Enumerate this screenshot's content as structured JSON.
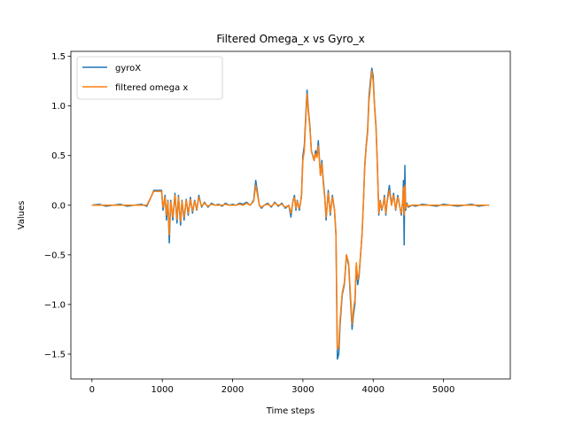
{
  "chart_data": {
    "type": "line",
    "title": "Filtered Omega_x vs Gyro_x",
    "xlabel": "Time steps",
    "ylabel": "Values",
    "xlim": [
      -300,
      5950
    ],
    "ylim": [
      -1.75,
      1.55
    ],
    "xticks": [
      0,
      1000,
      2000,
      3000,
      4000,
      5000
    ],
    "yticks": [
      -1.5,
      -1.0,
      -0.5,
      0.0,
      0.5,
      1.0,
      1.5
    ],
    "xtick_labels": [
      "0",
      "1000",
      "2000",
      "3000",
      "4000",
      "5000"
    ],
    "ytick_labels": [
      "−1.5",
      "−1.0",
      "−0.5",
      "0.0",
      "0.5",
      "1.0",
      "1.5"
    ],
    "grid": false,
    "legend_position": "top-left",
    "series": [
      {
        "name": "gyroX",
        "color": "#1f77b4",
        "x": [
          0,
          100,
          200,
          300,
          400,
          500,
          600,
          700,
          780,
          850,
          880,
          900,
          930,
          960,
          990,
          1010,
          1040,
          1060,
          1080,
          1100,
          1120,
          1150,
          1180,
          1210,
          1230,
          1260,
          1280,
          1310,
          1340,
          1370,
          1400,
          1430,
          1460,
          1490,
          1520,
          1560,
          1600,
          1650,
          1700,
          1750,
          1800,
          1850,
          1900,
          1950,
          2000,
          2050,
          2100,
          2150,
          2200,
          2250,
          2300,
          2330,
          2360,
          2380,
          2410,
          2450,
          2500,
          2550,
          2600,
          2650,
          2700,
          2750,
          2800,
          2830,
          2860,
          2880,
          2900,
          2920,
          2950,
          2980,
          3000,
          3020,
          3040,
          3060,
          3080,
          3100,
          3120,
          3140,
          3160,
          3180,
          3200,
          3220,
          3250,
          3270,
          3290,
          3310,
          3330,
          3360,
          3390,
          3420,
          3450,
          3470,
          3490,
          3510,
          3530,
          3560,
          3590,
          3620,
          3650,
          3680,
          3700,
          3720,
          3740,
          3760,
          3780,
          3800,
          3820,
          3840,
          3860,
          3880,
          3900,
          3920,
          3940,
          3960,
          3980,
          4000,
          4020,
          4040,
          4060,
          4080,
          4100,
          4120,
          4140,
          4160,
          4180,
          4200,
          4230,
          4260,
          4290,
          4320,
          4350,
          4380,
          4400,
          4420,
          4430,
          4440,
          4450,
          4460,
          4480,
          4500,
          4550,
          4600,
          4700,
          4800,
          4900,
          5000,
          5100,
          5200,
          5300,
          5400,
          5500,
          5600,
          5650
        ],
        "y": [
          0.0,
          0.01,
          -0.01,
          0.0,
          0.01,
          -0.01,
          0.0,
          0.01,
          -0.01,
          0.1,
          0.15,
          0.15,
          0.15,
          0.15,
          0.15,
          -0.05,
          0.1,
          -0.15,
          0.05,
          -0.38,
          0.05,
          -0.15,
          0.12,
          -0.18,
          0.1,
          -0.2,
          0.05,
          -0.15,
          0.06,
          -0.1,
          0.08,
          -0.08,
          0.05,
          -0.05,
          0.1,
          -0.02,
          0.03,
          -0.02,
          0.02,
          0.0,
          0.01,
          -0.01,
          0.02,
          0.0,
          0.01,
          0.0,
          0.02,
          0.01,
          0.03,
          0.0,
          0.05,
          0.25,
          0.1,
          0.0,
          -0.03,
          0.0,
          0.02,
          -0.02,
          0.03,
          -0.01,
          0.02,
          -0.03,
          0.0,
          -0.12,
          0.05,
          0.1,
          -0.05,
          0.05,
          -0.05,
          0.1,
          0.5,
          0.6,
          0.9,
          1.16,
          0.95,
          0.8,
          0.55,
          0.5,
          0.45,
          0.55,
          0.5,
          0.65,
          0.3,
          0.45,
          0.25,
          0.1,
          -0.15,
          0.15,
          -0.1,
          0.1,
          -0.05,
          -0.3,
          -1.55,
          -1.5,
          -1.2,
          -0.9,
          -0.8,
          -0.5,
          -0.6,
          -1.0,
          -1.25,
          -1.1,
          -1.0,
          -0.6,
          -0.8,
          -0.7,
          -0.5,
          -0.3,
          0.0,
          0.4,
          0.6,
          0.75,
          1.1,
          1.25,
          1.38,
          1.3,
          1.0,
          0.8,
          0.4,
          -0.1,
          0.05,
          -0.05,
          0.0,
          0.1,
          -0.1,
          0.05,
          0.2,
          0.0,
          0.12,
          -0.05,
          0.1,
          -0.02,
          -0.1,
          0.05,
          0.25,
          -0.4,
          0.4,
          -0.05,
          0.02,
          -0.02,
          0.0,
          -0.01,
          0.01,
          0.0,
          -0.01,
          0.01,
          0.0,
          -0.01,
          0.0,
          0.01,
          -0.01,
          0.0,
          0.0
        ]
      },
      {
        "name": "filtered omega x",
        "color": "#ff7f0e",
        "x": [
          0,
          100,
          200,
          300,
          400,
          500,
          600,
          700,
          780,
          850,
          880,
          900,
          930,
          960,
          990,
          1010,
          1040,
          1060,
          1080,
          1100,
          1120,
          1150,
          1180,
          1210,
          1230,
          1260,
          1280,
          1310,
          1340,
          1370,
          1400,
          1430,
          1460,
          1490,
          1520,
          1560,
          1600,
          1650,
          1700,
          1750,
          1800,
          1850,
          1900,
          1950,
          2000,
          2050,
          2100,
          2150,
          2200,
          2250,
          2300,
          2330,
          2360,
          2380,
          2410,
          2450,
          2500,
          2550,
          2600,
          2650,
          2700,
          2750,
          2800,
          2830,
          2860,
          2880,
          2900,
          2920,
          2950,
          2980,
          3000,
          3020,
          3040,
          3060,
          3080,
          3100,
          3120,
          3140,
          3160,
          3180,
          3200,
          3220,
          3250,
          3270,
          3290,
          3310,
          3330,
          3360,
          3390,
          3420,
          3450,
          3470,
          3490,
          3510,
          3530,
          3560,
          3590,
          3620,
          3650,
          3680,
          3700,
          3720,
          3740,
          3760,
          3780,
          3800,
          3820,
          3840,
          3860,
          3880,
          3900,
          3920,
          3940,
          3960,
          3980,
          4000,
          4020,
          4040,
          4060,
          4080,
          4100,
          4120,
          4140,
          4160,
          4180,
          4200,
          4230,
          4260,
          4290,
          4320,
          4350,
          4380,
          4400,
          4420,
          4430,
          4440,
          4450,
          4460,
          4480,
          4500,
          4550,
          4600,
          4700,
          4800,
          4900,
          5000,
          5100,
          5200,
          5300,
          5400,
          5500,
          5600,
          5650
        ],
        "y": [
          0.0,
          0.0,
          0.0,
          0.0,
          0.0,
          0.0,
          0.0,
          0.0,
          0.0,
          0.1,
          0.14,
          0.14,
          0.14,
          0.14,
          0.14,
          -0.02,
          0.08,
          -0.1,
          0.04,
          -0.3,
          0.03,
          -0.12,
          0.1,
          -0.14,
          0.08,
          -0.16,
          0.04,
          -0.12,
          0.05,
          -0.08,
          0.06,
          -0.06,
          0.04,
          -0.04,
          0.08,
          -0.01,
          0.02,
          -0.01,
          0.01,
          0.0,
          0.0,
          0.0,
          0.01,
          0.0,
          0.0,
          0.0,
          0.01,
          0.0,
          0.02,
          0.0,
          0.04,
          0.2,
          0.08,
          0.0,
          -0.02,
          0.0,
          0.01,
          -0.01,
          0.02,
          0.0,
          0.01,
          -0.02,
          0.0,
          -0.08,
          0.04,
          0.08,
          -0.03,
          0.04,
          -0.03,
          0.08,
          0.45,
          0.55,
          0.85,
          1.12,
          0.92,
          0.78,
          0.55,
          0.5,
          0.45,
          0.52,
          0.48,
          0.6,
          0.3,
          0.42,
          0.22,
          0.08,
          -0.12,
          0.12,
          -0.08,
          0.08,
          -0.05,
          -0.28,
          -1.45,
          -1.42,
          -1.15,
          -0.88,
          -0.78,
          -0.5,
          -0.58,
          -0.95,
          -1.2,
          -1.05,
          -0.95,
          -0.58,
          -0.75,
          -0.68,
          -0.5,
          -0.3,
          0.0,
          0.38,
          0.58,
          0.72,
          1.05,
          1.2,
          1.35,
          1.25,
          0.98,
          0.78,
          0.38,
          -0.08,
          0.04,
          -0.04,
          0.0,
          0.08,
          -0.08,
          0.04,
          0.15,
          0.0,
          0.1,
          -0.04,
          0.08,
          -0.02,
          -0.08,
          0.04,
          0.18,
          -0.1,
          0.2,
          -0.03,
          0.01,
          -0.01,
          0.0,
          0.0,
          0.0,
          0.0,
          0.0,
          0.0,
          0.0,
          0.0,
          0.0,
          0.0,
          0.0,
          0.0,
          0.0
        ]
      }
    ]
  }
}
